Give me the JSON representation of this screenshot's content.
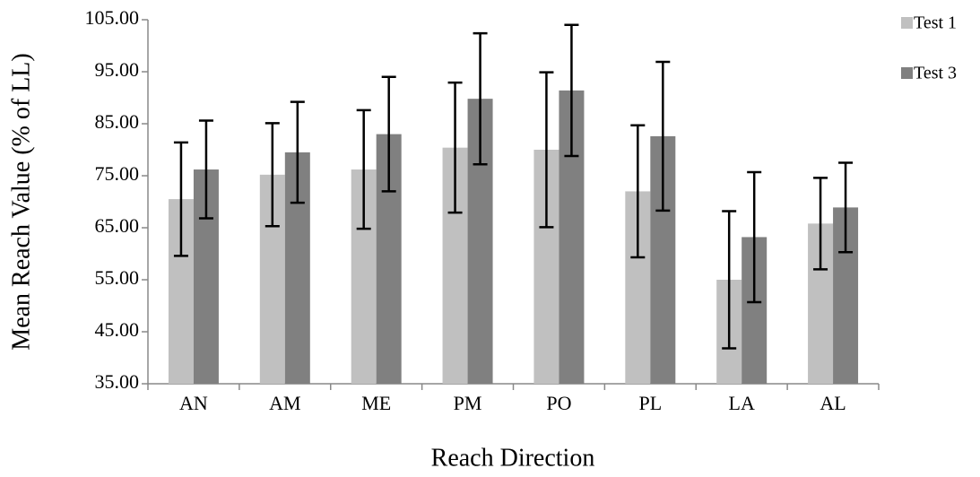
{
  "chart_data": {
    "type": "bar",
    "x_label": "Reach Direction",
    "y_label": "Mean Reach Value (% of LL)",
    "categories": [
      "AN",
      "AM",
      "ME",
      "PM",
      "PO",
      "PL",
      "LA",
      "AL"
    ],
    "series": [
      {
        "name": "Test 1",
        "color": "#c0c0c0",
        "values": [
          70.5,
          75.2,
          76.2,
          80.4,
          80.0,
          72.0,
          55.0,
          65.8
        ],
        "errors": [
          10.9,
          9.9,
          11.4,
          12.5,
          14.9,
          12.7,
          13.2,
          8.8
        ]
      },
      {
        "name": "Test 3",
        "color": "#808080",
        "values": [
          76.2,
          79.5,
          83.0,
          89.8,
          91.4,
          82.6,
          63.2,
          68.9
        ],
        "errors": [
          9.4,
          9.7,
          11.0,
          12.6,
          12.6,
          14.3,
          12.5,
          8.6
        ]
      }
    ],
    "ylim": [
      35,
      105
    ],
    "yticks": [
      {
        "value": 35,
        "label": "35.00"
      },
      {
        "value": 45,
        "label": "45.00"
      },
      {
        "value": 55,
        "label": "55.00"
      },
      {
        "value": 65,
        "label": "65.00"
      },
      {
        "value": 75,
        "label": "75.00"
      },
      {
        "value": 85,
        "label": "85.00"
      },
      {
        "value": 95,
        "label": "95.00"
      },
      {
        "value": 105,
        "label": "105.00"
      }
    ],
    "grid": false,
    "legend": "right"
  }
}
